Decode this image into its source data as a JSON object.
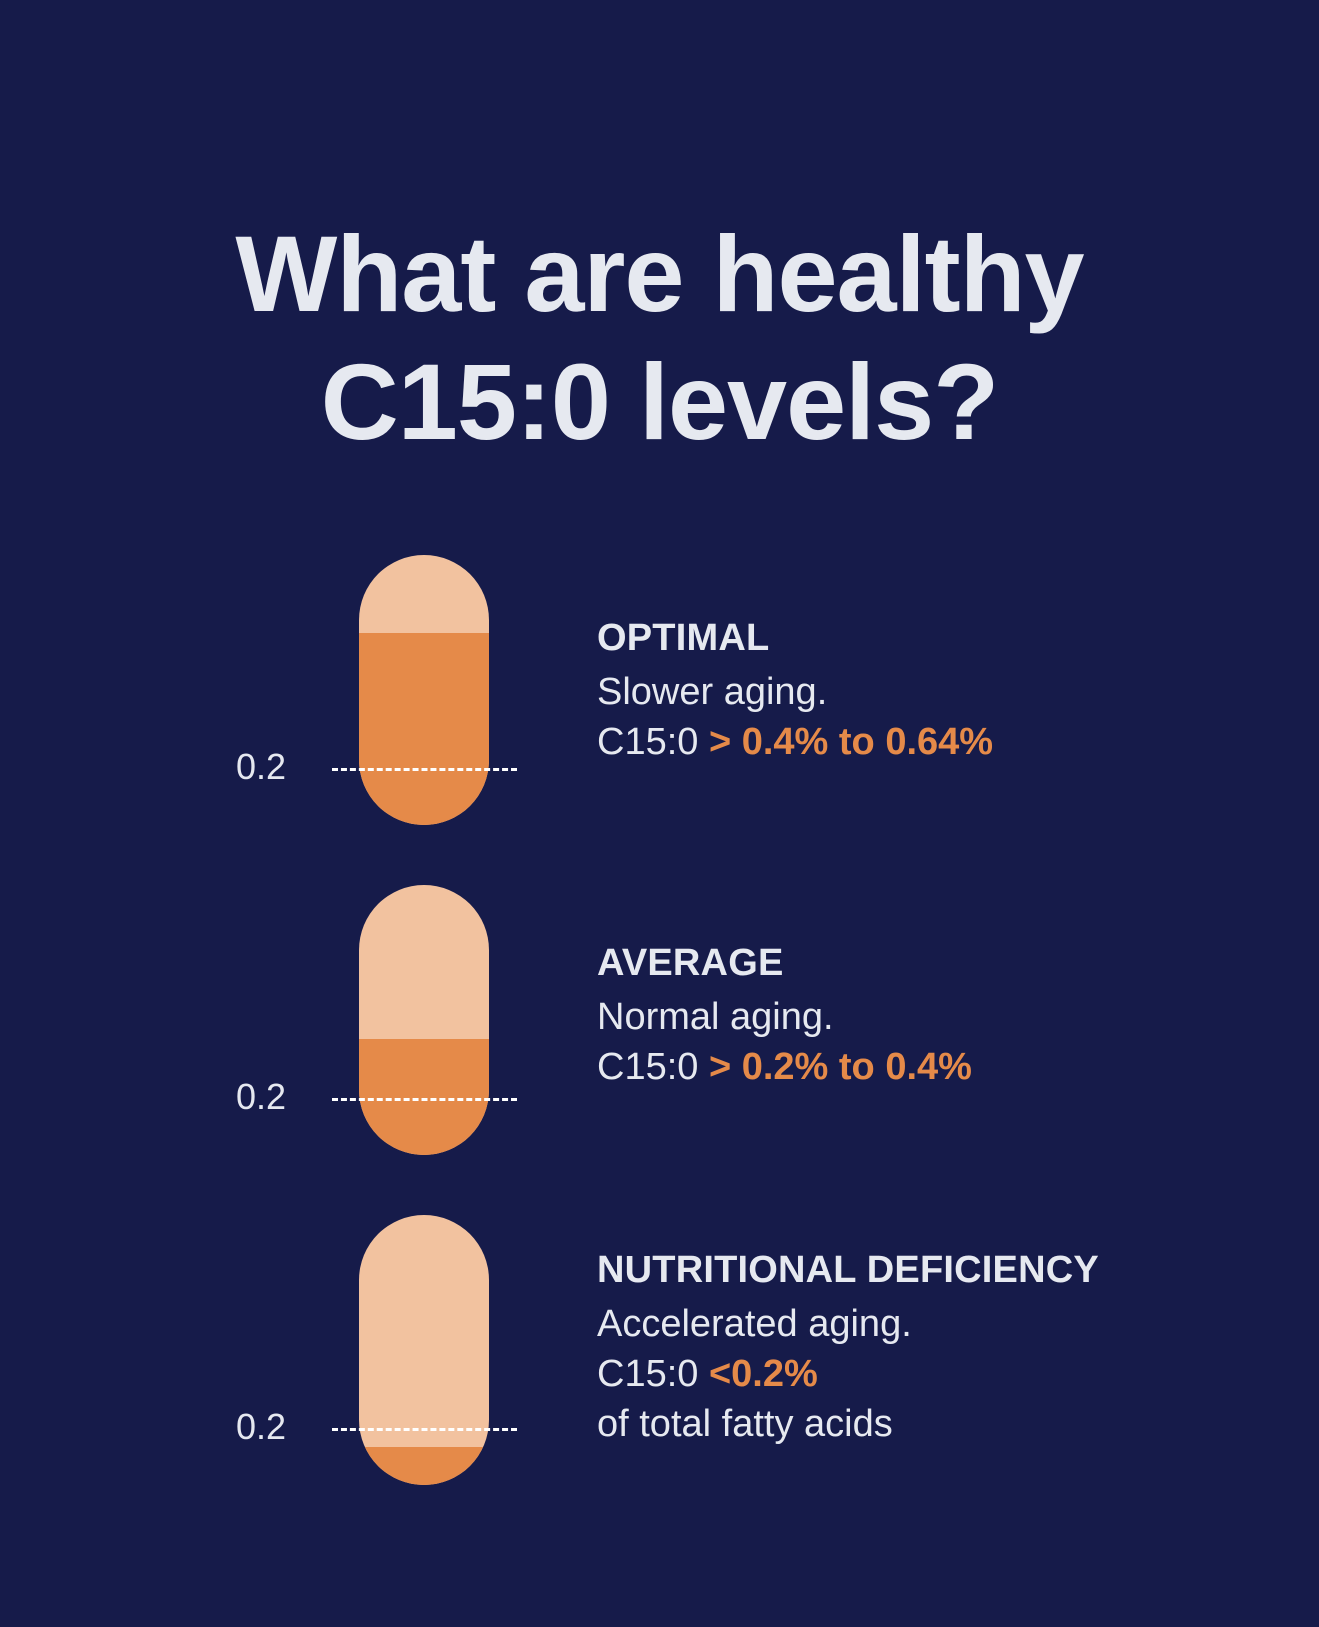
{
  "title": {
    "line1": "What are healthy",
    "line2": "C15:0 levels?"
  },
  "colors": {
    "background": "#161b4a",
    "text": "#e6e9f0",
    "accent": "#e58a49",
    "pill_empty": "#f2c29f"
  },
  "levels": [
    {
      "heading": "OPTIMAL",
      "description": "Slower aging.",
      "metric_prefix": "C15:0",
      "metric_value": "> 0.4% to 0.64%",
      "threshold_label": "0.2",
      "fill_fraction": 0.71
    },
    {
      "heading": "AVERAGE",
      "description": "Normal aging.",
      "metric_prefix": "C15:0",
      "metric_value": "> 0.2% to 0.4%",
      "threshold_label": "0.2",
      "fill_fraction": 0.43
    },
    {
      "heading": "NUTRITIONAL DEFICIENCY",
      "description": "Accelerated aging.",
      "metric_prefix": "C15:0",
      "metric_value": "<0.2%",
      "extra_line": "of total fatty acids",
      "threshold_label": "0.2",
      "fill_fraction": 0.14
    }
  ]
}
